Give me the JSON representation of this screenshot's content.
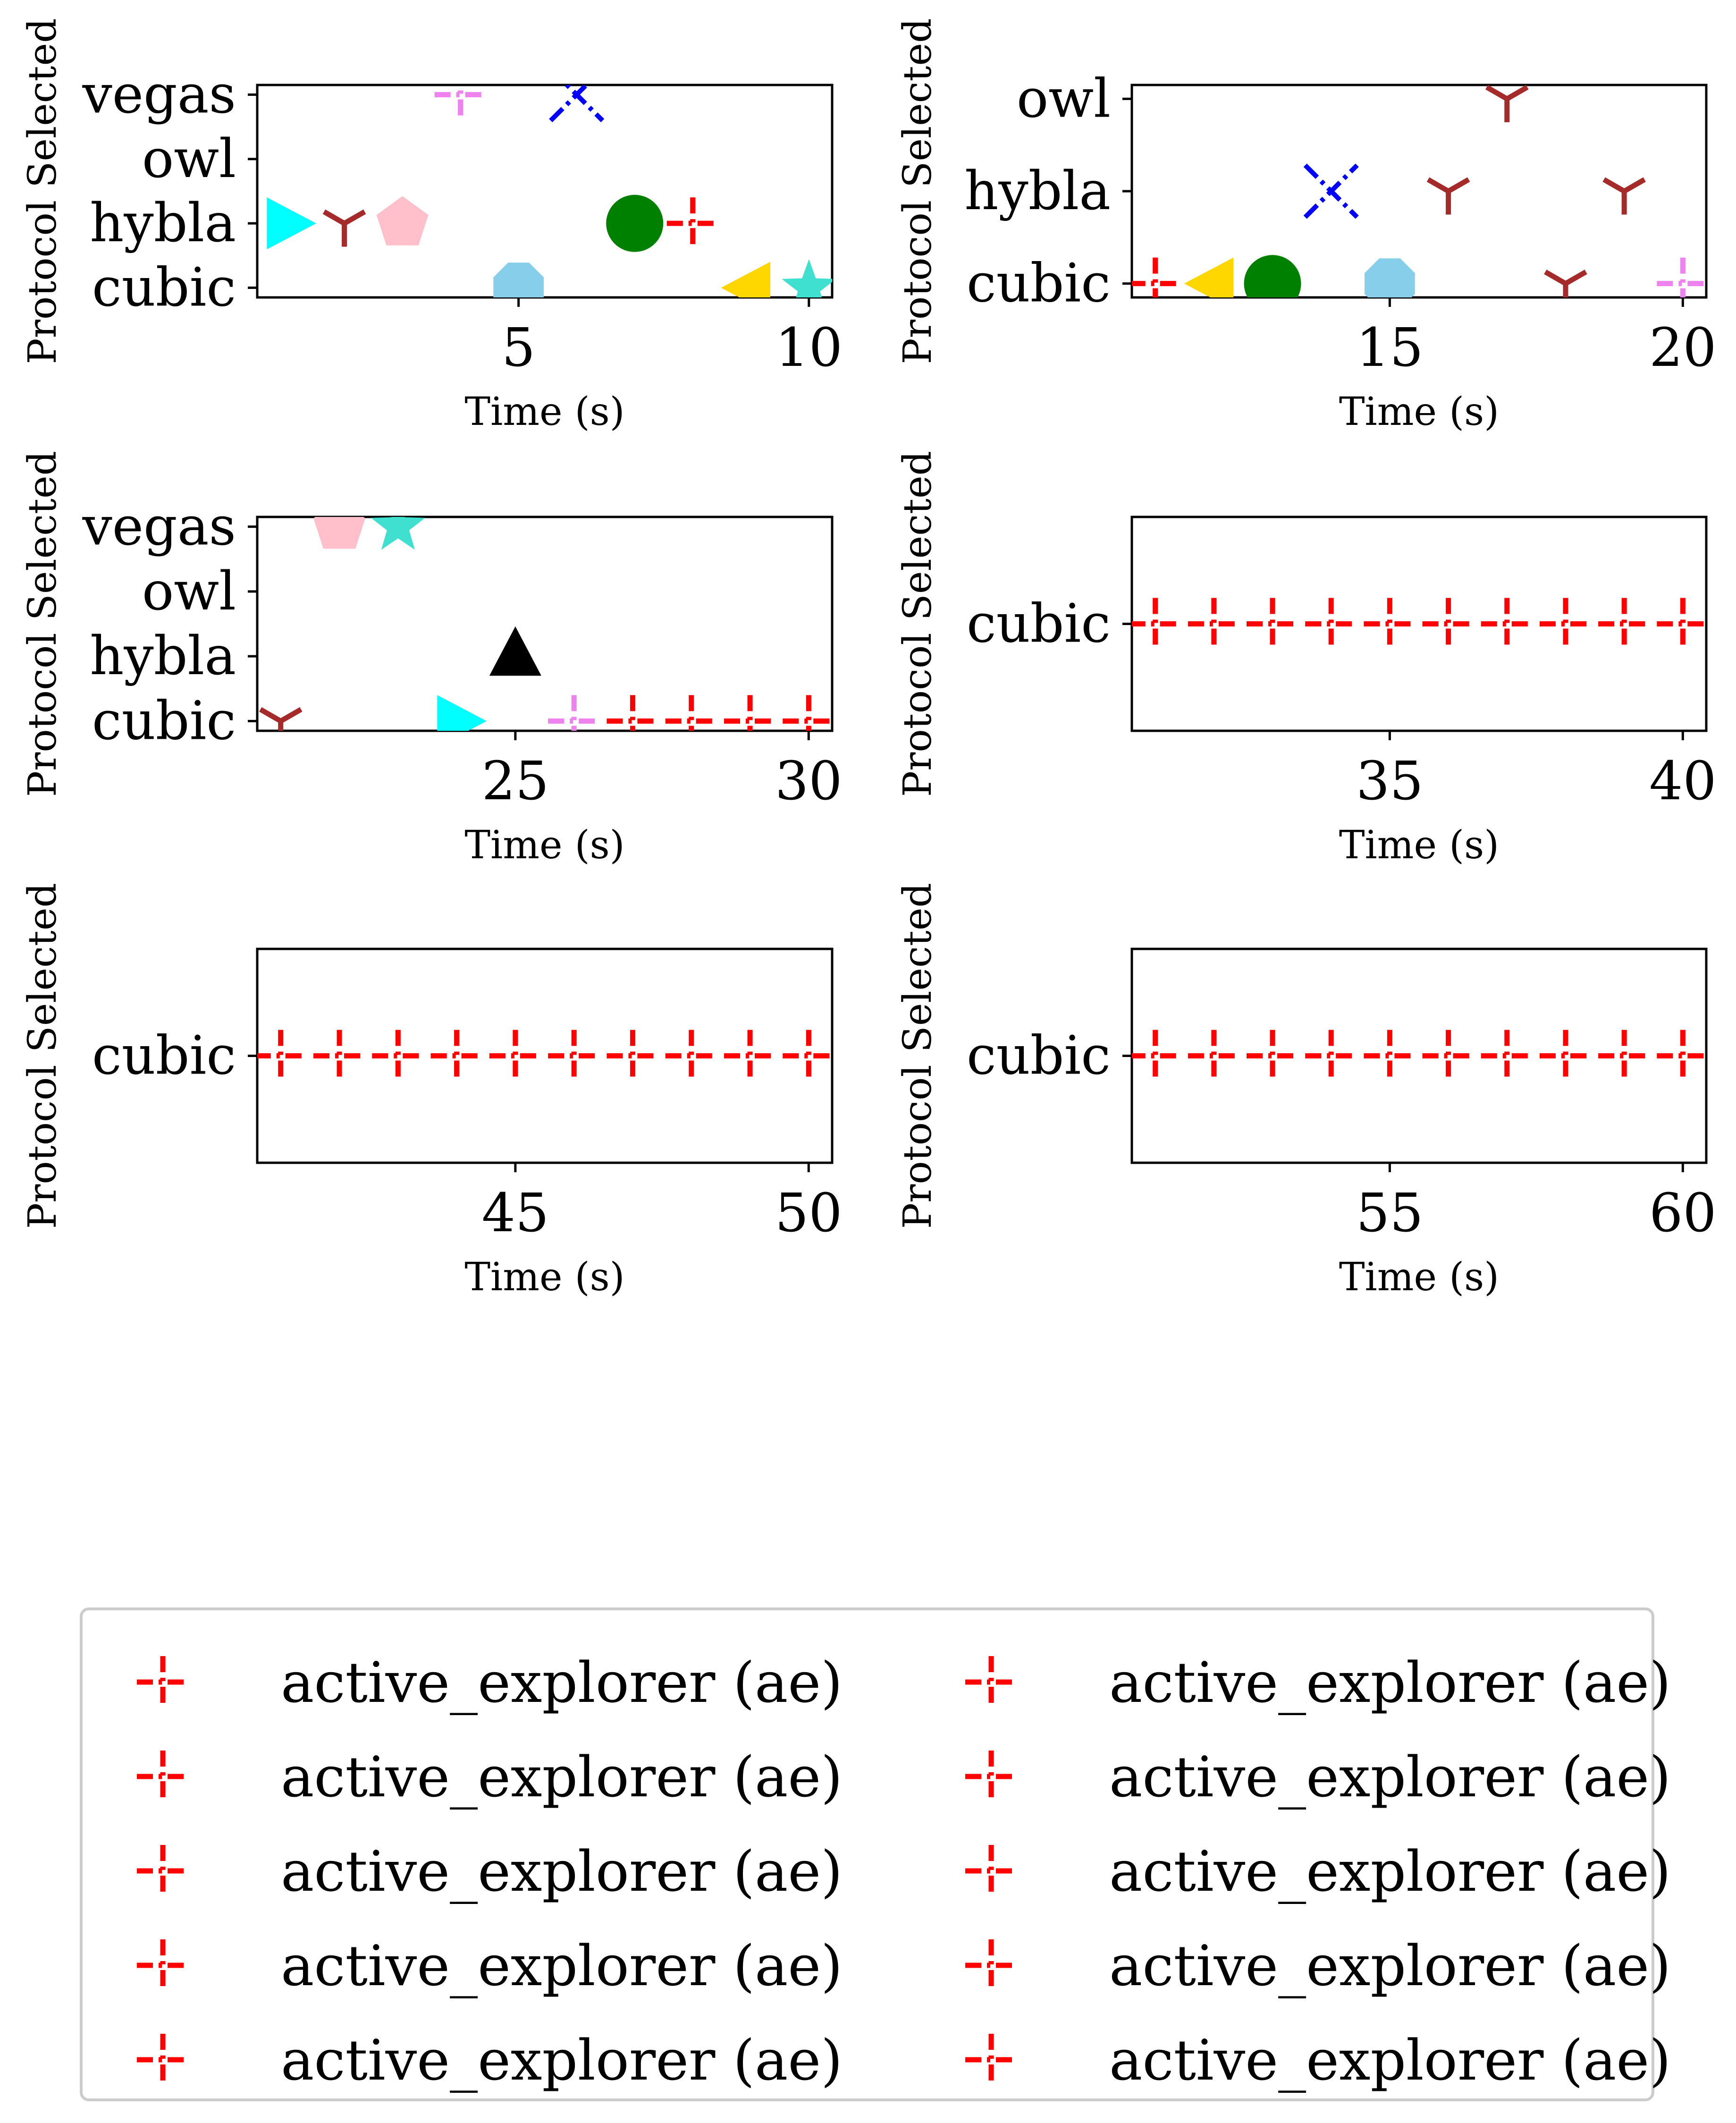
{
  "chart_data": [
    {
      "type": "scatter",
      "xlabel": "Time (s)",
      "ylabel": "Protocol Selected",
      "categories": [
        "cubic",
        "hybla",
        "owl",
        "vegas"
      ],
      "xlim": [
        0.5,
        10.4
      ],
      "xticks": [
        5,
        10
      ],
      "points": [
        {
          "x": 1,
          "y": "hybla",
          "marker": "right-triangle",
          "color": "#00FFFF"
        },
        {
          "x": 2,
          "y": "hybla",
          "marker": "tri-down",
          "color": "#A52A2A"
        },
        {
          "x": 3,
          "y": "hybla",
          "marker": "pentagon",
          "color": "#FFC0CB"
        },
        {
          "x": 4,
          "y": "vegas",
          "marker": "plus",
          "color": "#EE82EE"
        },
        {
          "x": 5,
          "y": "cubic",
          "marker": "octagon",
          "color": "#87CEEB"
        },
        {
          "x": 6,
          "y": "vegas",
          "marker": "x",
          "color": "#0000FF"
        },
        {
          "x": 7,
          "y": "hybla",
          "marker": "circle",
          "color": "#008000"
        },
        {
          "x": 8,
          "y": "hybla",
          "marker": "plus",
          "color": "#FF0000"
        },
        {
          "x": 9,
          "y": "cubic",
          "marker": "left-triangle",
          "color": "#FFD700"
        },
        {
          "x": 10,
          "y": "cubic",
          "marker": "star",
          "color": "#40E0D0"
        }
      ]
    },
    {
      "type": "scatter",
      "xlabel": "Time (s)",
      "ylabel": "Protocol Selected",
      "categories": [
        "cubic",
        "hybla",
        "owl"
      ],
      "xlim": [
        10.6,
        20.4
      ],
      "xticks": [
        15,
        20
      ],
      "points": [
        {
          "x": 11,
          "y": "cubic",
          "marker": "plus",
          "color": "#FF0000"
        },
        {
          "x": 12,
          "y": "cubic",
          "marker": "left-triangle",
          "color": "#FFD700"
        },
        {
          "x": 13,
          "y": "cubic",
          "marker": "circle",
          "color": "#008000"
        },
        {
          "x": 14,
          "y": "hybla",
          "marker": "x",
          "color": "#0000FF"
        },
        {
          "x": 15,
          "y": "cubic",
          "marker": "octagon",
          "color": "#87CEEB"
        },
        {
          "x": 16,
          "y": "hybla",
          "marker": "tri-down",
          "color": "#A52A2A"
        },
        {
          "x": 17,
          "y": "owl",
          "marker": "tri-down",
          "color": "#A52A2A"
        },
        {
          "x": 18,
          "y": "cubic",
          "marker": "tri-down",
          "color": "#A52A2A"
        },
        {
          "x": 19,
          "y": "hybla",
          "marker": "tri-down",
          "color": "#A52A2A"
        },
        {
          "x": 20,
          "y": "cubic",
          "marker": "plus",
          "color": "#EE82EE"
        }
      ]
    },
    {
      "type": "scatter",
      "xlabel": "Time (s)",
      "ylabel": "Protocol Selected",
      "categories": [
        "cubic",
        "hybla",
        "owl",
        "vegas"
      ],
      "xlim": [
        20.6,
        30.4
      ],
      "xticks": [
        25,
        30
      ],
      "points": [
        {
          "x": 21,
          "y": "cubic",
          "marker": "tri-down",
          "color": "#A52A2A"
        },
        {
          "x": 22,
          "y": "vegas",
          "marker": "pentagon",
          "color": "#FFC0CB"
        },
        {
          "x": 23,
          "y": "vegas",
          "marker": "star",
          "color": "#40E0D0"
        },
        {
          "x": 24,
          "y": "cubic",
          "marker": "right-triangle",
          "color": "#00FFFF"
        },
        {
          "x": 25,
          "y": "hybla",
          "marker": "up-triangle",
          "color": "#000000"
        },
        {
          "x": 26,
          "y": "cubic",
          "marker": "plus",
          "color": "#EE82EE"
        },
        {
          "x": 27,
          "y": "cubic",
          "marker": "plus",
          "color": "#FF0000"
        },
        {
          "x": 28,
          "y": "cubic",
          "marker": "plus",
          "color": "#FF0000"
        },
        {
          "x": 29,
          "y": "cubic",
          "marker": "plus",
          "color": "#FF0000"
        },
        {
          "x": 30,
          "y": "cubic",
          "marker": "plus",
          "color": "#FF0000"
        }
      ]
    },
    {
      "type": "scatter",
      "xlabel": "Time (s)",
      "ylabel": "Protocol Selected",
      "categories": [
        "cubic"
      ],
      "xlim": [
        30.6,
        40.4
      ],
      "xticks": [
        35,
        40
      ],
      "points": [
        {
          "x": 31,
          "y": "cubic",
          "marker": "plus",
          "color": "#FF0000"
        },
        {
          "x": 32,
          "y": "cubic",
          "marker": "plus",
          "color": "#FF0000"
        },
        {
          "x": 33,
          "y": "cubic",
          "marker": "plus",
          "color": "#FF0000"
        },
        {
          "x": 34,
          "y": "cubic",
          "marker": "plus",
          "color": "#FF0000"
        },
        {
          "x": 35,
          "y": "cubic",
          "marker": "plus",
          "color": "#FF0000"
        },
        {
          "x": 36,
          "y": "cubic",
          "marker": "plus",
          "color": "#FF0000"
        },
        {
          "x": 37,
          "y": "cubic",
          "marker": "plus",
          "color": "#FF0000"
        },
        {
          "x": 38,
          "y": "cubic",
          "marker": "plus",
          "color": "#FF0000"
        },
        {
          "x": 39,
          "y": "cubic",
          "marker": "plus",
          "color": "#FF0000"
        },
        {
          "x": 40,
          "y": "cubic",
          "marker": "plus",
          "color": "#FF0000"
        }
      ]
    },
    {
      "type": "scatter",
      "xlabel": "Time (s)",
      "ylabel": "Protocol Selected",
      "categories": [
        "cubic"
      ],
      "xlim": [
        40.6,
        50.4
      ],
      "xticks": [
        45,
        50
      ],
      "points": [
        {
          "x": 41,
          "y": "cubic",
          "marker": "plus",
          "color": "#FF0000"
        },
        {
          "x": 42,
          "y": "cubic",
          "marker": "plus",
          "color": "#FF0000"
        },
        {
          "x": 43,
          "y": "cubic",
          "marker": "plus",
          "color": "#FF0000"
        },
        {
          "x": 44,
          "y": "cubic",
          "marker": "plus",
          "color": "#FF0000"
        },
        {
          "x": 45,
          "y": "cubic",
          "marker": "plus",
          "color": "#FF0000"
        },
        {
          "x": 46,
          "y": "cubic",
          "marker": "plus",
          "color": "#FF0000"
        },
        {
          "x": 47,
          "y": "cubic",
          "marker": "plus",
          "color": "#FF0000"
        },
        {
          "x": 48,
          "y": "cubic",
          "marker": "plus",
          "color": "#FF0000"
        },
        {
          "x": 49,
          "y": "cubic",
          "marker": "plus",
          "color": "#FF0000"
        },
        {
          "x": 50,
          "y": "cubic",
          "marker": "plus",
          "color": "#FF0000"
        }
      ]
    },
    {
      "type": "scatter",
      "xlabel": "Time (s)",
      "ylabel": "Protocol Selected",
      "categories": [
        "cubic"
      ],
      "xlim": [
        50.6,
        60.4
      ],
      "xticks": [
        55,
        60
      ],
      "points": [
        {
          "x": 51,
          "y": "cubic",
          "marker": "plus",
          "color": "#FF0000"
        },
        {
          "x": 52,
          "y": "cubic",
          "marker": "plus",
          "color": "#FF0000"
        },
        {
          "x": 53,
          "y": "cubic",
          "marker": "plus",
          "color": "#FF0000"
        },
        {
          "x": 54,
          "y": "cubic",
          "marker": "plus",
          "color": "#FF0000"
        },
        {
          "x": 55,
          "y": "cubic",
          "marker": "plus",
          "color": "#FF0000"
        },
        {
          "x": 56,
          "y": "cubic",
          "marker": "plus",
          "color": "#FF0000"
        },
        {
          "x": 57,
          "y": "cubic",
          "marker": "plus",
          "color": "#FF0000"
        },
        {
          "x": 58,
          "y": "cubic",
          "marker": "plus",
          "color": "#FF0000"
        },
        {
          "x": 59,
          "y": "cubic",
          "marker": "plus",
          "color": "#FF0000"
        },
        {
          "x": 60,
          "y": "cubic",
          "marker": "plus",
          "color": "#FF0000"
        }
      ]
    }
  ],
  "legend": {
    "placement": "bottom",
    "marker": "plus",
    "marker_color": "#FF0000",
    "entries": [
      "active_explorer (ae)",
      "active_explorer (ae)",
      "active_explorer (ae)",
      "active_explorer (ae)",
      "active_explorer (ae)",
      "active_explorer (ae)",
      "active_explorer (ae)",
      "active_explorer (ae)",
      "active_explorer (ae)",
      "active_explorer (ae)"
    ]
  }
}
